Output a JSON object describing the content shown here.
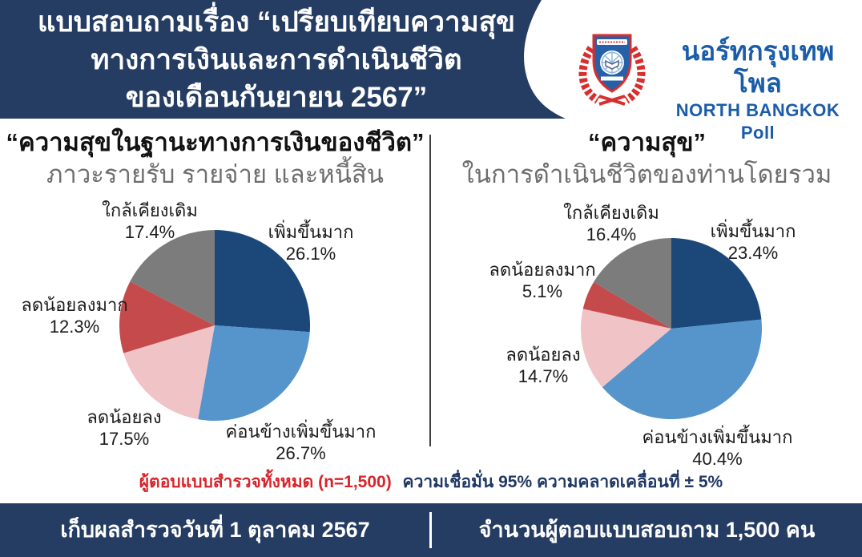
{
  "header": {
    "title_lines": [
      "แบบสอบถามเรื่อง “เปรียบเทียบความสุข",
      "ทางการเงินและการดำเนินชีวิต",
      "ของเดือนกันยายน 2567”"
    ],
    "bg_color": "#253c63"
  },
  "logo": {
    "thai_name": "นอร์ทกรุงเทพโพล",
    "english_name": "NORTH BANGKOK Poll",
    "text_color": "#1a5ca8",
    "wreath_color": "#d82e2e",
    "shield_color": "#2660a8"
  },
  "chart_data": [
    {
      "type": "pie",
      "title": "“ความสุขในฐานะทางการเงินของชีวิต”",
      "subtitle": "ภาวะรายรับ รายจ่าย และหนี้สิน",
      "start_angle_deg": -90,
      "direction": "clockwise",
      "slices": [
        {
          "label": "เพิ่มขึ้นมาก",
          "value": 26.1,
          "pct": "26.1%",
          "color": "#1c4879"
        },
        {
          "label": "ค่อนข้างเพิ่มขึ้นมาก",
          "value": 26.7,
          "pct": "26.7%",
          "color": "#5694cc"
        },
        {
          "label": "ลดน้อยลง",
          "value": 17.5,
          "pct": "17.5%",
          "color": "#f0c3c6"
        },
        {
          "label": "ลดน้อยลงมาก",
          "value": 12.3,
          "pct": "12.3%",
          "color": "#c54a4c"
        },
        {
          "label": "ใกล้เคียงเดิม",
          "value": 17.4,
          "pct": "17.4%",
          "color": "#7c7c7c"
        }
      ]
    },
    {
      "type": "pie",
      "title": "“ความสุข”",
      "subtitle": "ในการดำเนินชีวิตของท่านโดยรวม",
      "start_angle_deg": -90,
      "direction": "clockwise",
      "slices": [
        {
          "label": "เพิ่มขึ้นมาก",
          "value": 23.4,
          "pct": "23.4%",
          "color": "#1c4879"
        },
        {
          "label": "ค่อนข้างเพิ่มขึ้นมาก",
          "value": 40.4,
          "pct": "40.4%",
          "color": "#5694cc"
        },
        {
          "label": "ลดน้อยลง",
          "value": 14.7,
          "pct": "14.7%",
          "color": "#f0c3c6"
        },
        {
          "label": "ลดน้อยลงมาก",
          "value": 5.1,
          "pct": "5.1%",
          "color": "#c54a4c"
        },
        {
          "label": "ใกล้เคียงเดิม",
          "value": 16.4,
          "pct": "16.4%",
          "color": "#7c7c7c"
        }
      ]
    }
  ],
  "note": {
    "red_part": "ผู้ตอบแบบสำรวจทั้งหมด (n=1,500)",
    "navy_part": "ความเชื่อมั่น 95% ความคลาดเคลื่อนที่ ± 5%"
  },
  "footer": {
    "left": "เก็บผลสำรวจวันที่ 1 ตุลาคม 2567",
    "right": "จำนวนผู้ตอบแบบสอบถาม 1,500 คน"
  }
}
